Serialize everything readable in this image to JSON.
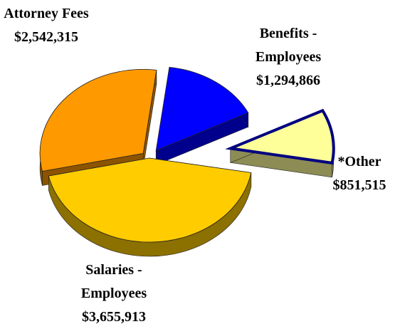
{
  "chart_data": {
    "type": "pie",
    "categories": [
      "*Other",
      "Benefits - Employees",
      "Attorney Fees",
      "Salaries - Employees"
    ],
    "values": [
      851515,
      1294866,
      2542315,
      3655913
    ],
    "value_labels": [
      "$851,515",
      "$1,294,866",
      "$2,542,315",
      "$3,655,913"
    ],
    "colors": [
      "#ffff99",
      "#0000ff",
      "#ff9900",
      "#ffcc00"
    ]
  }
}
